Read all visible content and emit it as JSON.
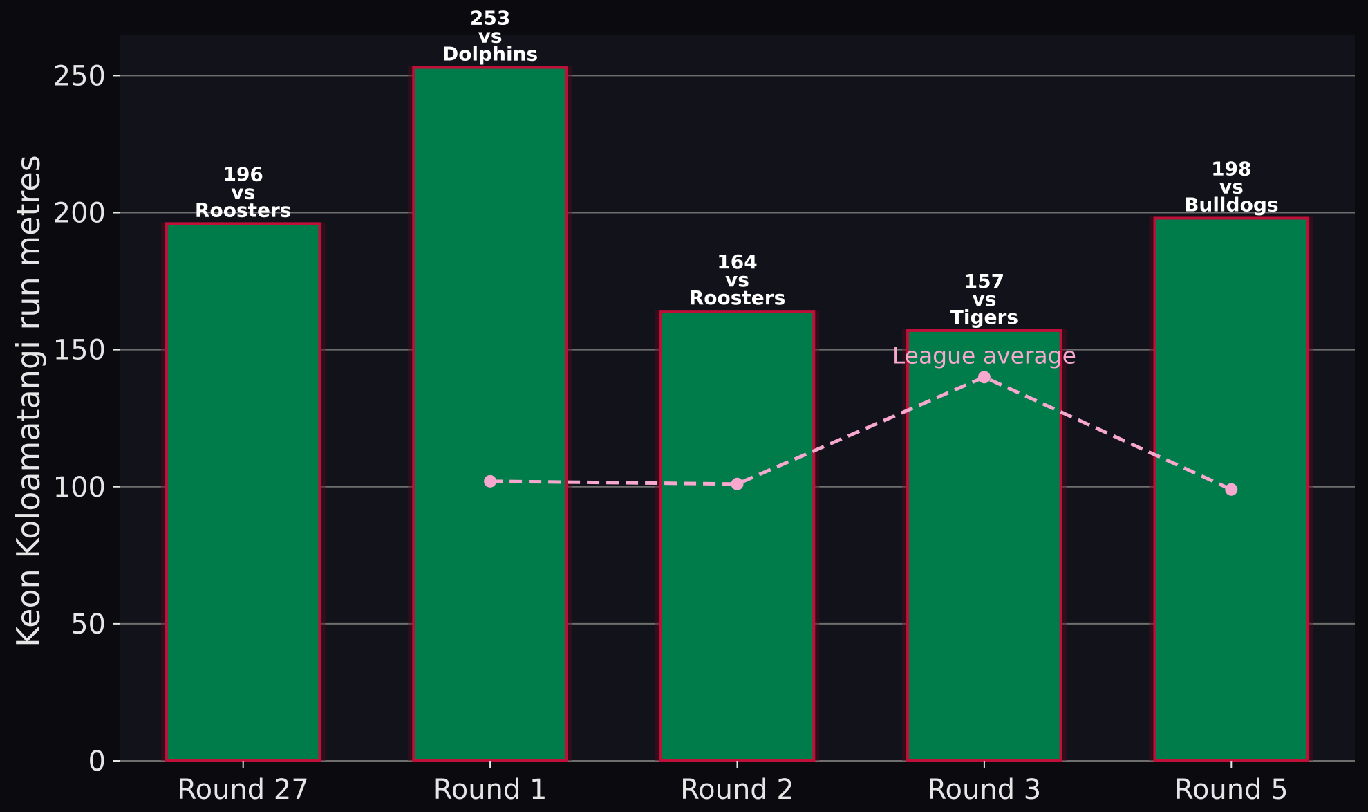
{
  "chart_data": {
    "type": "bar",
    "ylabel": "Keon Koloamatangi run metres",
    "xlabel": "",
    "title": "",
    "ylim": [
      0,
      265
    ],
    "yticks": [
      0,
      50,
      100,
      150,
      200,
      250
    ],
    "grid": "horizontal",
    "categories": [
      "Round 27",
      "Round 1",
      "Round 2",
      "Round 3",
      "Round 5"
    ],
    "series": [
      {
        "type": "bar",
        "values": [
          196,
          253,
          164,
          157,
          198
        ],
        "labels": [
          "196\nvs\nRoosters",
          "253\nvs\nDolphins",
          "164\nvs\nRoosters",
          "157\nvs\nTigers",
          "198\nvs\nBulldogs"
        ]
      },
      {
        "name": "League average",
        "type": "line",
        "style": "dashed",
        "values": [
          null,
          102,
          101,
          140,
          99
        ]
      }
    ],
    "annotation": {
      "text": "League average",
      "category": "Round 3"
    },
    "colors": {
      "bar_fill": "#007c4a",
      "bar_edge": "#c0103a",
      "avg_line": "#f7a8cf",
      "plot_bg": "#12121a",
      "page_bg": "#0b0b0f",
      "grid": "#6e6e6e",
      "text": "#e6e6e6"
    }
  }
}
